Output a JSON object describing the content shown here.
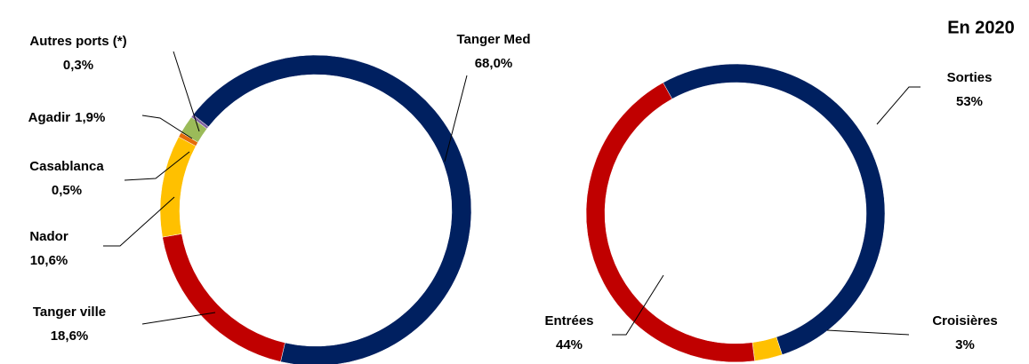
{
  "chart_data": [
    {
      "type": "donut",
      "categories": [
        "Tanger Med",
        "Tanger ville",
        "Nador",
        "Casablanca",
        "Agadir",
        "Autres ports (*)"
      ],
      "values": [
        68.0,
        18.6,
        10.6,
        0.5,
        1.9,
        0.3
      ],
      "value_labels": [
        "68,0%",
        "18,6%",
        "10,6%",
        "0,5%",
        "1,9%",
        "0,3%"
      ],
      "colors": [
        "#002060",
        "#c00000",
        "#ffc000",
        "#e46c0a",
        "#9bbb59",
        "#8064a2"
      ]
    },
    {
      "type": "donut",
      "title": "En 2020",
      "categories": [
        "Sorties",
        "Croisières",
        "Entrées"
      ],
      "values": [
        53,
        3,
        44
      ],
      "value_labels": [
        "53%",
        "3%",
        "44%"
      ],
      "colors": [
        "#002060",
        "#ffc000",
        "#c00000"
      ]
    }
  ]
}
